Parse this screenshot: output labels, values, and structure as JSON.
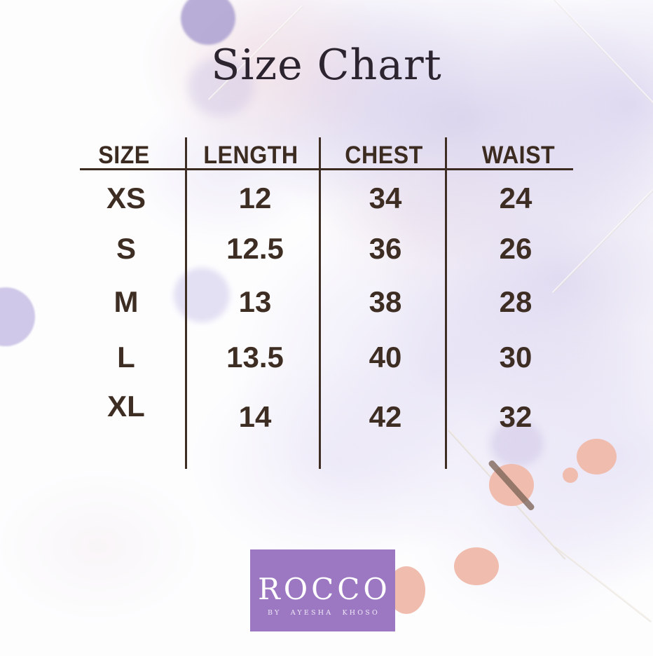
{
  "title": "Size Chart",
  "table": {
    "headers": [
      "SIZE",
      "LENGTH",
      "CHEST",
      "WAIST"
    ],
    "rows": [
      {
        "size": "XS",
        "length": "12",
        "chest": "34",
        "waist": "24"
      },
      {
        "size": "S",
        "length": "12.5",
        "chest": "36",
        "waist": "26"
      },
      {
        "size": "M",
        "length": "13",
        "chest": "38",
        "waist": "28"
      },
      {
        "size": "L",
        "length": "13.5",
        "chest": "40",
        "waist": "30"
      },
      {
        "size": "XL",
        "length": "14",
        "chest": "42",
        "waist": "32"
      }
    ]
  },
  "logo": {
    "brand": "ROCCO",
    "byline": "BY AYESHA KHOSO"
  },
  "colors": {
    "table_ink": "#3c2b21",
    "title_ink": "#2c2530",
    "logo_purple": "#9c78c3",
    "logo_text": "#ffffff",
    "pink_dot": "#f0bcae",
    "lavender_wash": "#d3cbe9",
    "muted_purple_dot": "#aba0d0",
    "background": "#fdfdfe"
  },
  "chart_data": {
    "type": "table",
    "title": "Size Chart",
    "columns": [
      "SIZE",
      "LENGTH",
      "CHEST",
      "WAIST"
    ],
    "rows": [
      [
        "XS",
        12,
        34,
        24
      ],
      [
        "S",
        12.5,
        36,
        26
      ],
      [
        "M",
        13,
        38,
        28
      ],
      [
        "L",
        13.5,
        40,
        30
      ],
      [
        "XL",
        14,
        42,
        32
      ]
    ],
    "units": "inches (implied)",
    "notes": "size chart graphic on lavender watercolor background with ROCCO brand logo"
  }
}
